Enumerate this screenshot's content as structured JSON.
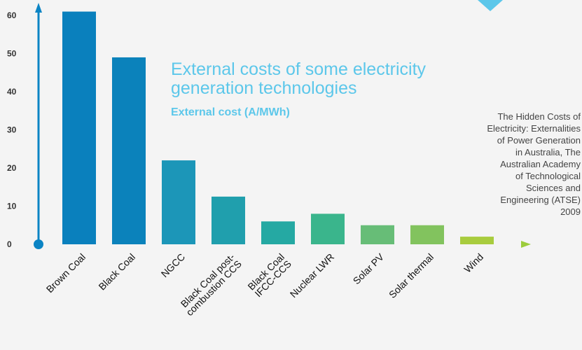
{
  "chart_data": {
    "type": "bar",
    "title": "External costs of some electricity generation technologies",
    "subtitle": "External cost (A/MWh)",
    "source": "The Hidden Costs of Electricity: Externalities of Power Generation in Australia, The Australian Academy of Technological Sciences and Engineering (ATSE) 2009",
    "source_lines": [
      "The Hidden Costs of",
      "Electricity: Externalities",
      "of Power Generation",
      "in Australia, The",
      "Australian Academy",
      "of Technological",
      "Sciences and",
      "Engineering (ATSE)",
      "2009"
    ],
    "categories": [
      "Brown Coal",
      "Black Coal",
      "NGCC",
      "Black Coal post-combustion CCS",
      "Black Coal IFCC-CCS",
      "Nuclear LWR",
      "Solar PV",
      "Solar thermal",
      "Wind"
    ],
    "category_label_lines": [
      [
        "Brown Coal"
      ],
      [
        "Black Coal"
      ],
      [
        "NGCC"
      ],
      [
        "Black Coal post-",
        "combustion CCS"
      ],
      [
        "Black Coal",
        "IFCC-CCS"
      ],
      [
        "Nuclear LWR"
      ],
      [
        "Solar PV"
      ],
      [
        "Solar thermal"
      ],
      [
        "Wind"
      ]
    ],
    "values": [
      61,
      49,
      22,
      12.5,
      6,
      8,
      5,
      5,
      2
    ],
    "yticks": [
      0,
      10,
      20,
      30,
      40,
      50,
      60
    ],
    "ylim": [
      0,
      65
    ],
    "bar_colors": [
      "#0a80bd",
      "#0b82bb",
      "#1c96b8",
      "#209fad",
      "#25a9a3",
      "#3ab58c",
      "#67bd77",
      "#82c35e",
      "#a8cc3e"
    ],
    "colors": {
      "y_axis": "#0b84c4",
      "x_axis_start": "#0b84c4",
      "x_axis_end": "#9ccc3c",
      "title": "#5cc7ea"
    }
  }
}
